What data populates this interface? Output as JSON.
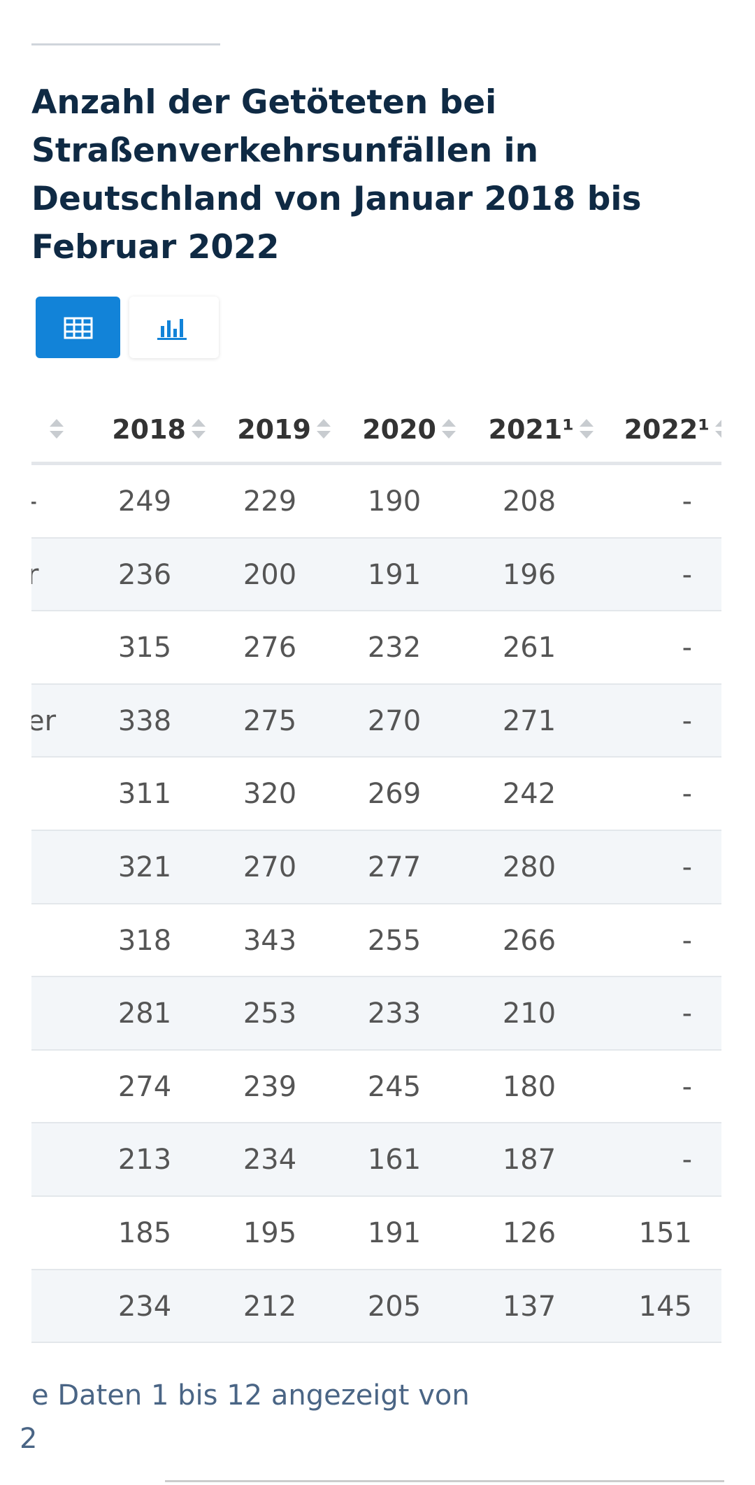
{
  "title": "Anzahl der Getöteten bei Straßenverkehrsunfällen in Deutschland von Januar 2018 bis Februar 2022",
  "table": {
    "headers": [
      "2018",
      "2019",
      "2020",
      "2021¹",
      "2022¹"
    ],
    "rows": [
      {
        "label": "-",
        "cells": [
          "249",
          "229",
          "190",
          "208",
          "-"
        ]
      },
      {
        "label": "r",
        "cells": [
          "236",
          "200",
          "191",
          "196",
          "-"
        ]
      },
      {
        "label": null,
        "cells": [
          "315",
          "276",
          "232",
          "261",
          "-"
        ]
      },
      {
        "label": "er",
        "cells": [
          "338",
          "275",
          "270",
          "271",
          "-"
        ]
      },
      {
        "label": null,
        "cells": [
          "311",
          "320",
          "269",
          "242",
          "-"
        ]
      },
      {
        "label": null,
        "cells": [
          "321",
          "270",
          "277",
          "280",
          "-"
        ]
      },
      {
        "label": null,
        "cells": [
          "318",
          "343",
          "255",
          "266",
          "-"
        ]
      },
      {
        "label": null,
        "cells": [
          "281",
          "253",
          "233",
          "210",
          "-"
        ]
      },
      {
        "label": null,
        "cells": [
          "274",
          "239",
          "245",
          "180",
          "-"
        ]
      },
      {
        "label": null,
        "cells": [
          "213",
          "234",
          "161",
          "187",
          "-"
        ]
      },
      {
        "label": null,
        "cells": [
          "185",
          "195",
          "191",
          "126",
          "151"
        ]
      },
      {
        "label": null,
        "cells": [
          "234",
          "212",
          "205",
          "137",
          "145"
        ]
      }
    ]
  },
  "footer": {
    "line1": "e Daten 1 bis 12 angezeigt von",
    "line2": "2"
  }
}
